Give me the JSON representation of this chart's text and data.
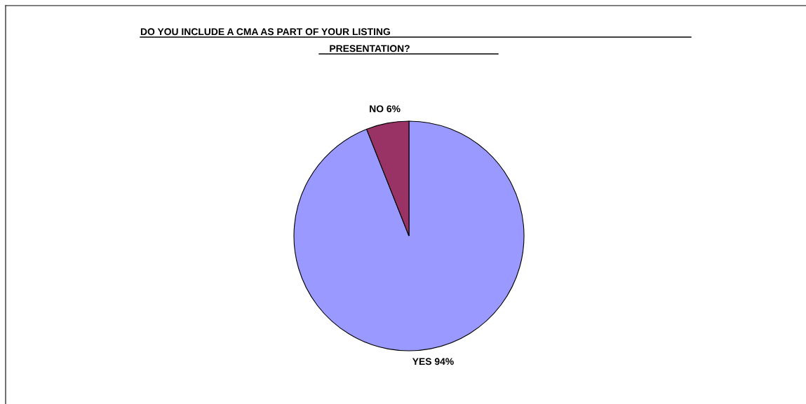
{
  "chart_data": {
    "type": "pie",
    "title": "DO YOU INCLUDE A CMA AS PART OF YOUR LISTING\nPRESENTATION?",
    "categories": [
      "YES",
      "NO"
    ],
    "values": [
      94,
      6
    ],
    "colors": [
      "#9999ff",
      "#993366"
    ],
    "value_labels": [
      "94%",
      "6%"
    ],
    "legend": false
  }
}
